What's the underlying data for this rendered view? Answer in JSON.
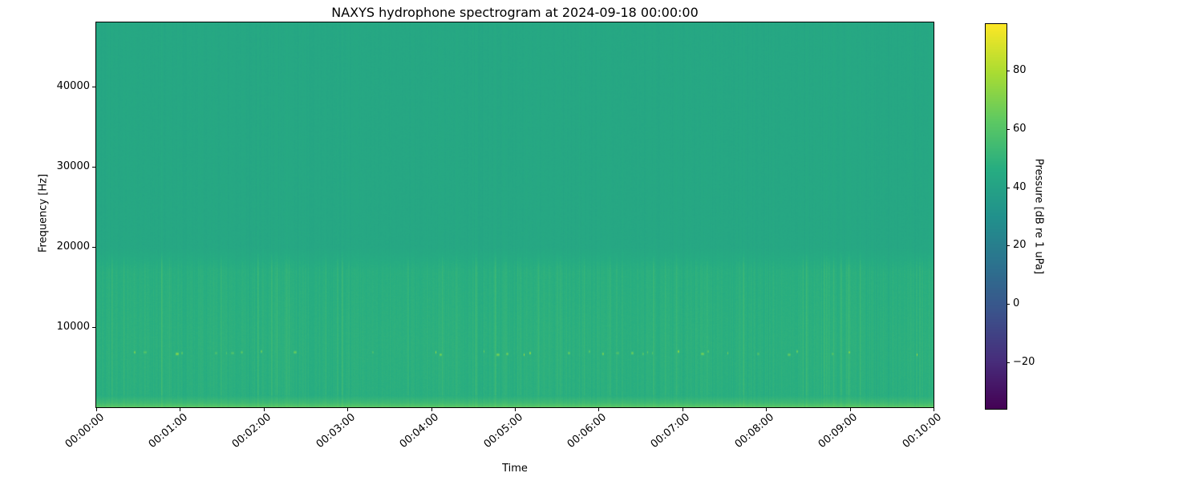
{
  "chart_data": {
    "type": "heatmap",
    "title": "NAXYS hydrophone spectrogram at 2024-09-18 00:00:00",
    "xlabel": "Time",
    "ylabel": "Frequency [Hz]",
    "colorbar_label": "Pressure [dB re 1 uPa]",
    "x_tick_labels": [
      "00:00:00",
      "00:01:00",
      "00:02:00",
      "00:03:00",
      "00:04:00",
      "00:05:00",
      "00:06:00",
      "00:07:00",
      "00:08:00",
      "00:09:00",
      "00:10:00"
    ],
    "x_range_seconds": [
      0,
      600
    ],
    "y_range_hz": [
      0,
      48000
    ],
    "y_ticks_hz": [
      10000,
      20000,
      30000,
      40000
    ],
    "y_tick_labels": [
      "10000",
      "20000",
      "30000",
      "40000"
    ],
    "grid": false,
    "colormap": "viridis",
    "viridis_stops": [
      "#440154",
      "#472d7b",
      "#3b528b",
      "#2c728e",
      "#21918c",
      "#27ad81",
      "#5ec962",
      "#aadc32",
      "#fde725"
    ],
    "value_range_db": [
      -36,
      96
    ],
    "colorbar_ticks_db": [
      80,
      60,
      40,
      20,
      0,
      -20
    ],
    "colorbar_tick_labels": [
      "80",
      "60",
      "40",
      "20",
      "0",
      "−20"
    ],
    "spectrogram": {
      "ambient_db": 43.3,
      "mid_band_hz": [
        1500,
        17000
      ],
      "mid_band_db": 47.5,
      "low_band_db_at_0hz": 62.5,
      "blip_freq_hz": 6800,
      "blip_peak_db": 84,
      "blip_min_db": 58,
      "blip_density": 0.045,
      "streak_density": 0.05,
      "seed": 1337
    }
  }
}
